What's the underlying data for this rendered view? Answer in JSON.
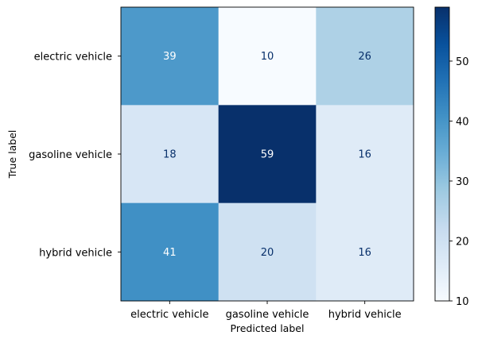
{
  "chart_data": {
    "type": "heatmap",
    "title": "",
    "xlabel": "Predicted label",
    "ylabel": "True label",
    "x_categories": [
      "electric vehicle",
      "gasoline vehicle",
      "hybrid vehicle"
    ],
    "y_categories": [
      "electric vehicle",
      "gasoline vehicle",
      "hybrid vehicle"
    ],
    "values": [
      [
        39,
        10,
        26
      ],
      [
        18,
        59,
        16
      ],
      [
        41,
        20,
        16
      ]
    ],
    "colormap": "Blues",
    "colorbar": {
      "range": [
        10,
        59
      ],
      "ticks": [
        10,
        20,
        30,
        40,
        50
      ]
    },
    "text_colors": {
      "light": "#ffffff",
      "dark": "#08306b"
    },
    "grid": false
  }
}
